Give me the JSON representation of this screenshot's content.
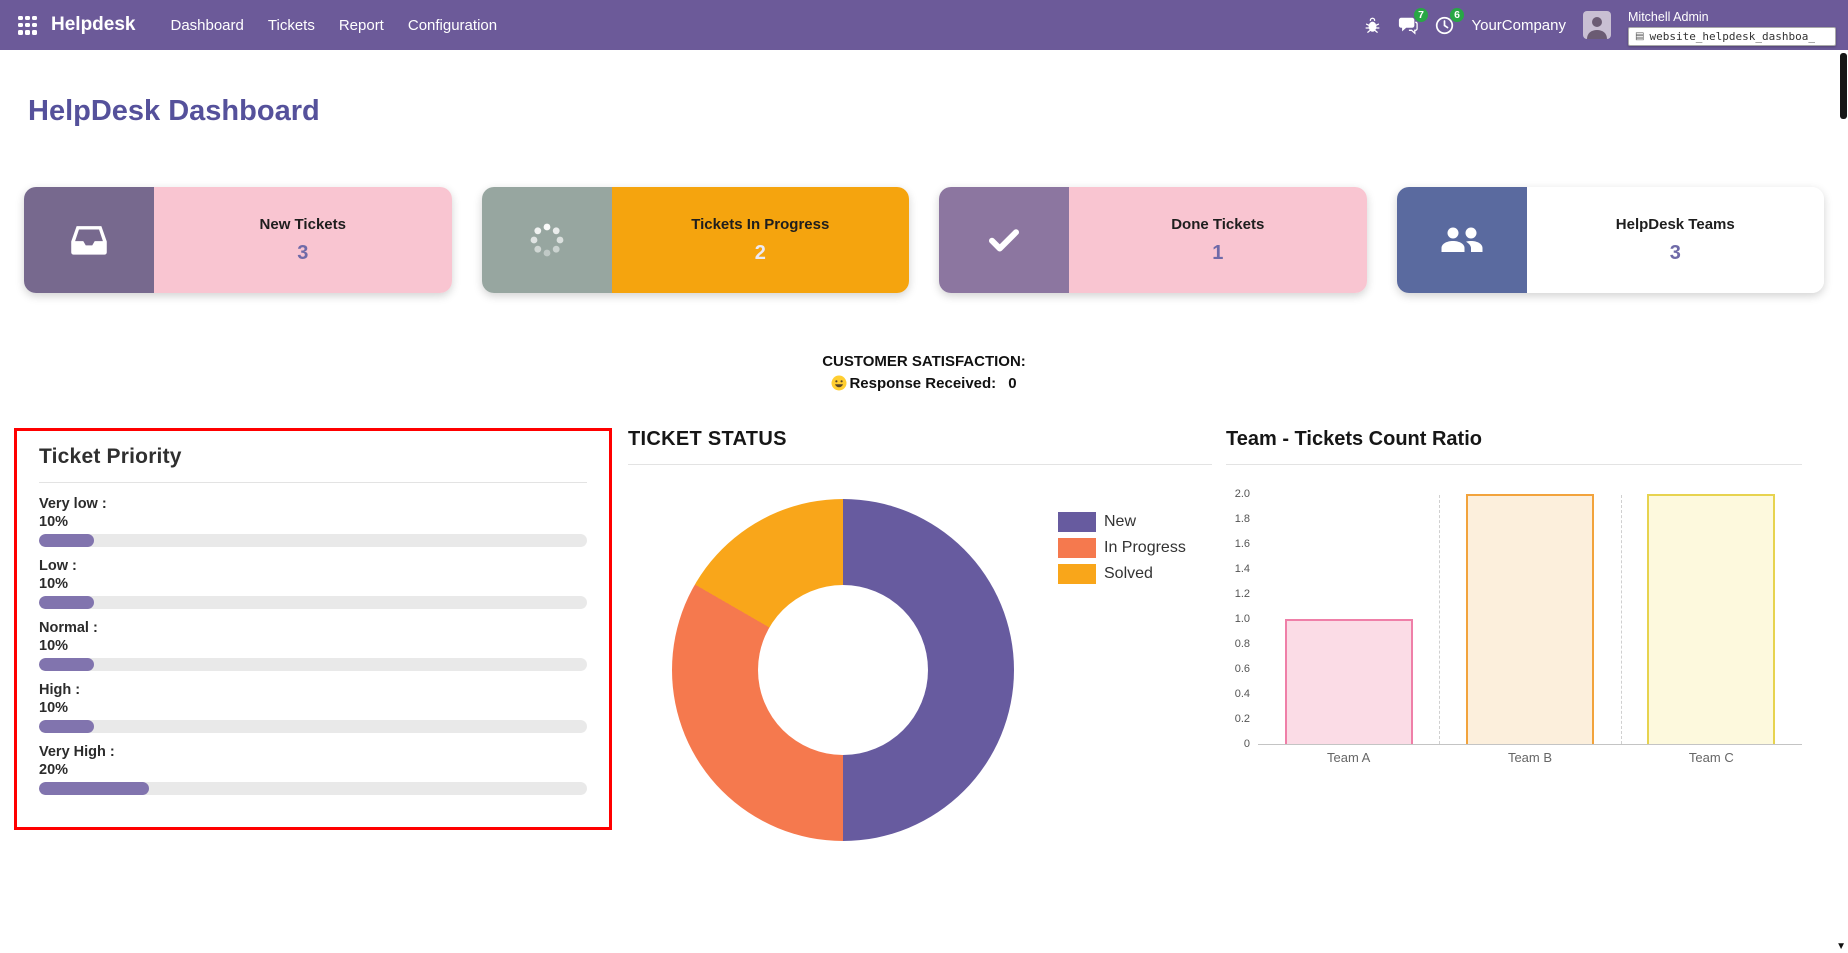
{
  "nav": {
    "brand": "Helpdesk",
    "items": [
      {
        "label": "Dashboard"
      },
      {
        "label": "Tickets"
      },
      {
        "label": "Report"
      },
      {
        "label": "Configuration"
      }
    ],
    "systray": {
      "bug_icon": "bug-icon",
      "messages_icon": "chat-icon",
      "messages_badge": "7",
      "activities_icon": "clock-icon",
      "activities_badge": "6",
      "company": "YourCompany",
      "user_name": "Mitchell Admin",
      "address_overlay": "website_helpdesk_dashboa_"
    }
  },
  "page": {
    "title": "HelpDesk Dashboard"
  },
  "kpis": [
    {
      "label": "New Tickets",
      "value": "3",
      "icon": "inbox-icon",
      "icon_bg": "#77698e",
      "body_bg": "#f9c5d1",
      "value_color": "#6f6aa8"
    },
    {
      "label": "Tickets In Progress",
      "value": "2",
      "icon": "spinner-icon",
      "icon_bg": "#97a6a0",
      "body_bg": "#f5a40e",
      "value_color": "#eceaf4"
    },
    {
      "label": "Done Tickets",
      "value": "1",
      "icon": "check-icon",
      "icon_bg": "#8c76a0",
      "body_bg": "#f9c5d1",
      "value_color": "#6f6aa8"
    },
    {
      "label": "HelpDesk Teams",
      "value": "3",
      "icon": "users-icon",
      "icon_bg": "#5a6a9f",
      "body_bg": "#ffffff",
      "value_color": "#6f6aa8"
    }
  ],
  "satisfaction": {
    "heading": "CUSTOMER SATISFACTION:",
    "smiley_icon": "grinning-face-icon",
    "label": "Response Received:",
    "value": "0"
  },
  "priority": {
    "title": "Ticket Priority",
    "items": [
      {
        "label": "Very low :",
        "pct": "10%",
        "value": 10
      },
      {
        "label": "Low :",
        "pct": "10%",
        "value": 10
      },
      {
        "label": "Normal :",
        "pct": "10%",
        "value": 10
      },
      {
        "label": "High :",
        "pct": "10%",
        "value": 10
      },
      {
        "label": "Very High :",
        "pct": "20%",
        "value": 20
      }
    ]
  },
  "status_panel": {
    "title": "TICKET STATUS"
  },
  "teams_panel": {
    "title": "Team - Tickets Count Ratio"
  },
  "scrollbar": {
    "down_arrow": "▼"
  },
  "colors": {
    "navbar": "#6c5a99",
    "page_title": "#55519b",
    "badge_green": "#28a745",
    "highlight_border": "#ff0000",
    "progress_fill": "#8174ae",
    "progress_track": "#e9e9e9"
  },
  "chart_data": [
    {
      "type": "pie",
      "subtype": "doughnut",
      "title": "TICKET STATUS",
      "labels": [
        "New",
        "In Progress",
        "Solved"
      ],
      "values": [
        3,
        2,
        1
      ],
      "percentages": [
        50,
        33.3,
        16.7
      ],
      "colors": [
        "#675b9f",
        "#f5794e",
        "#f9a61a"
      ],
      "legend_position": "right",
      "hole_ratio": 0.5
    },
    {
      "type": "bar",
      "title": "Team - Tickets Count Ratio",
      "categories": [
        "Team A",
        "Team B",
        "Team C"
      ],
      "values": [
        1,
        2,
        2
      ],
      "ylim": [
        0,
        2
      ],
      "ytick_step": 0.2,
      "yticks": [
        "0",
        "0.2",
        "0.4",
        "0.6",
        "0.8",
        "1.0",
        "1.2",
        "1.4",
        "1.6",
        "1.8",
        "2.0"
      ],
      "grid": "vertical-dashed",
      "bar_styles": [
        {
          "fill": "#fbdce6",
          "border": "#ef7fa8"
        },
        {
          "fill": "#fcefdc",
          "border": "#f2a33c"
        },
        {
          "fill": "#fdf9dd",
          "border": "#e7d34f"
        }
      ]
    },
    {
      "type": "bar",
      "orientation": "horizontal-progress",
      "title": "Ticket Priority",
      "categories": [
        "Very low",
        "Low",
        "Normal",
        "High",
        "Very High"
      ],
      "values": [
        10,
        10,
        10,
        10,
        20
      ],
      "unit": "%"
    }
  ]
}
